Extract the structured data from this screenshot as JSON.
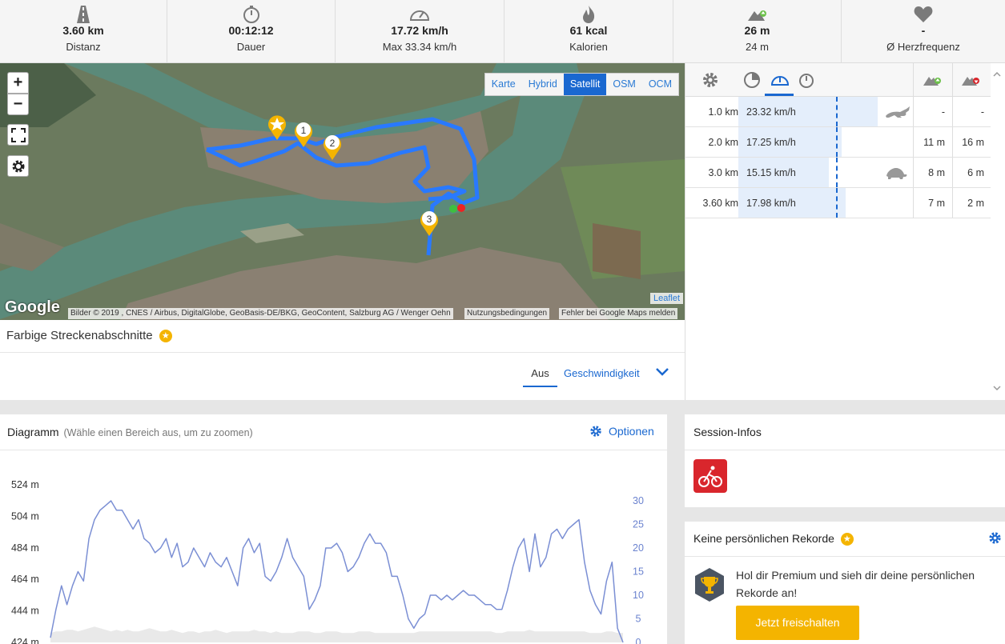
{
  "stats": [
    {
      "icon": "road-icon",
      "value": "3.60 km",
      "label": "Distanz"
    },
    {
      "icon": "stopwatch-icon",
      "value": "00:12:12",
      "label": "Dauer"
    },
    {
      "icon": "speedometer-icon",
      "value": "17.72 km/h",
      "label": "Max 33.34 km/h"
    },
    {
      "icon": "flame-icon",
      "value": "61 kcal",
      "label": "Kalorien"
    },
    {
      "icon": "elevation-up-icon",
      "value": "26 m",
      "label": "24 m"
    },
    {
      "icon": "heart-icon",
      "value": "-",
      "label": "Ø Herzfrequenz"
    }
  ],
  "map": {
    "layers": [
      "Karte",
      "Hybrid",
      "Satellit",
      "OSM",
      "OCM"
    ],
    "active_layer": "Satellit",
    "zoom_in": "+",
    "zoom_out": "−",
    "markers": [
      "1",
      "2",
      "3"
    ],
    "google": "Google",
    "attribution": "Bilder © 2019 , CNES / Airbus, DigitalGlobe, GeoBasis-DE/BKG, GeoContent, Salzburg AG / Wenger Oehn",
    "terms": "Nutzungsbedingungen",
    "report": "Fehler bei Google Maps melden",
    "leaflet": "Leaflet",
    "route_color": "#2979ff"
  },
  "segments": {
    "title": "Farbige Streckenabschnitte",
    "off": "Aus",
    "speed": "Geschwindigkeit"
  },
  "splits": {
    "rows": [
      {
        "dist": "1.0 km",
        "speed": "23.32 km/h",
        "speed_value": 23.32,
        "badge": "hare-icon",
        "up": "-",
        "down": "-"
      },
      {
        "dist": "2.0 km",
        "speed": "17.25 km/h",
        "speed_value": 17.25,
        "badge": "",
        "up": "11 m",
        "down": "16 m"
      },
      {
        "dist": "3.0 km",
        "speed": "15.15 km/h",
        "speed_value": 15.15,
        "badge": "turtle-icon",
        "up": "8 m",
        "down": "6 m"
      },
      {
        "dist": "3.60 km",
        "speed": "17.98 km/h",
        "speed_value": 17.98,
        "badge": "",
        "up": "7 m",
        "down": "2 m"
      }
    ],
    "bar_color": "#e4eefb"
  },
  "diagram": {
    "title": "Diagramm",
    "hint": "(Wähle einen Bereich aus, um zu zoomen)",
    "options": "Optionen"
  },
  "chart_data": {
    "type": "line",
    "y_left_ticks": [
      "524 m",
      "504 m",
      "484 m",
      "464 m",
      "444 m",
      "424 m"
    ],
    "y_right_ticks": [
      "30",
      "25",
      "20",
      "15",
      "10",
      "5",
      "0"
    ],
    "ylim_left": [
      424,
      524
    ],
    "ylim_right": [
      0,
      30
    ],
    "series": [
      {
        "values": [
          1,
          7,
          12,
          8,
          12,
          15,
          13,
          22,
          26,
          28,
          29,
          30,
          28,
          28,
          26,
          24,
          26,
          22,
          21,
          19,
          20,
          22,
          18,
          21,
          16,
          17,
          20,
          18,
          16,
          19,
          17,
          16,
          18,
          15,
          12,
          20,
          22,
          19,
          21,
          14,
          13,
          15,
          18,
          22,
          18,
          16,
          14,
          7,
          9,
          12,
          20,
          20,
          21,
          19,
          15,
          16,
          18,
          21,
          23,
          21,
          21,
          19,
          14,
          14,
          10,
          5,
          3,
          5,
          6,
          10,
          10,
          9,
          10,
          9,
          10,
          11,
          10,
          10,
          9,
          8,
          8,
          7,
          7,
          11,
          16,
          20,
          22,
          15,
          23,
          16,
          18,
          23,
          24,
          22,
          24,
          25,
          26,
          17,
          11,
          8,
          6,
          13,
          17,
          3,
          0
        ]
      }
    ],
    "elevation_profile": [
      430,
      431,
      431,
      432,
      432,
      431,
      432,
      433,
      434,
      433,
      432,
      431,
      432,
      431,
      432,
      431,
      431,
      432,
      433,
      432,
      431,
      431,
      432,
      431,
      430,
      431,
      431,
      430,
      431,
      431,
      432,
      431,
      430,
      431,
      431,
      431,
      431,
      432,
      431,
      431,
      430,
      431,
      430,
      430,
      430,
      431,
      431,
      431,
      430,
      430,
      431,
      431,
      431,
      430,
      430,
      430,
      431,
      431,
      431,
      430,
      430,
      430,
      430,
      430,
      430,
      430,
      430,
      431,
      431,
      431,
      431,
      431,
      431,
      431,
      431,
      431,
      431,
      431,
      431,
      431,
      431,
      430,
      430,
      431,
      431,
      431,
      431,
      432,
      431,
      431,
      431,
      431,
      431,
      431,
      431,
      431,
      431,
      431,
      430,
      430,
      430,
      431,
      431,
      430,
      430
    ],
    "line_color": "#7b8fd4"
  },
  "session": {
    "title": "Session-Infos",
    "sport_icon": "cycling-icon",
    "sport_color": "#d9262c"
  },
  "records": {
    "title": "Keine persönlichen Rekorde",
    "text": "Hol dir Premium und sieh dir deine persönlichen Rekorde an!",
    "button": "Jetzt freischalten",
    "button_color": "#f4b400"
  }
}
